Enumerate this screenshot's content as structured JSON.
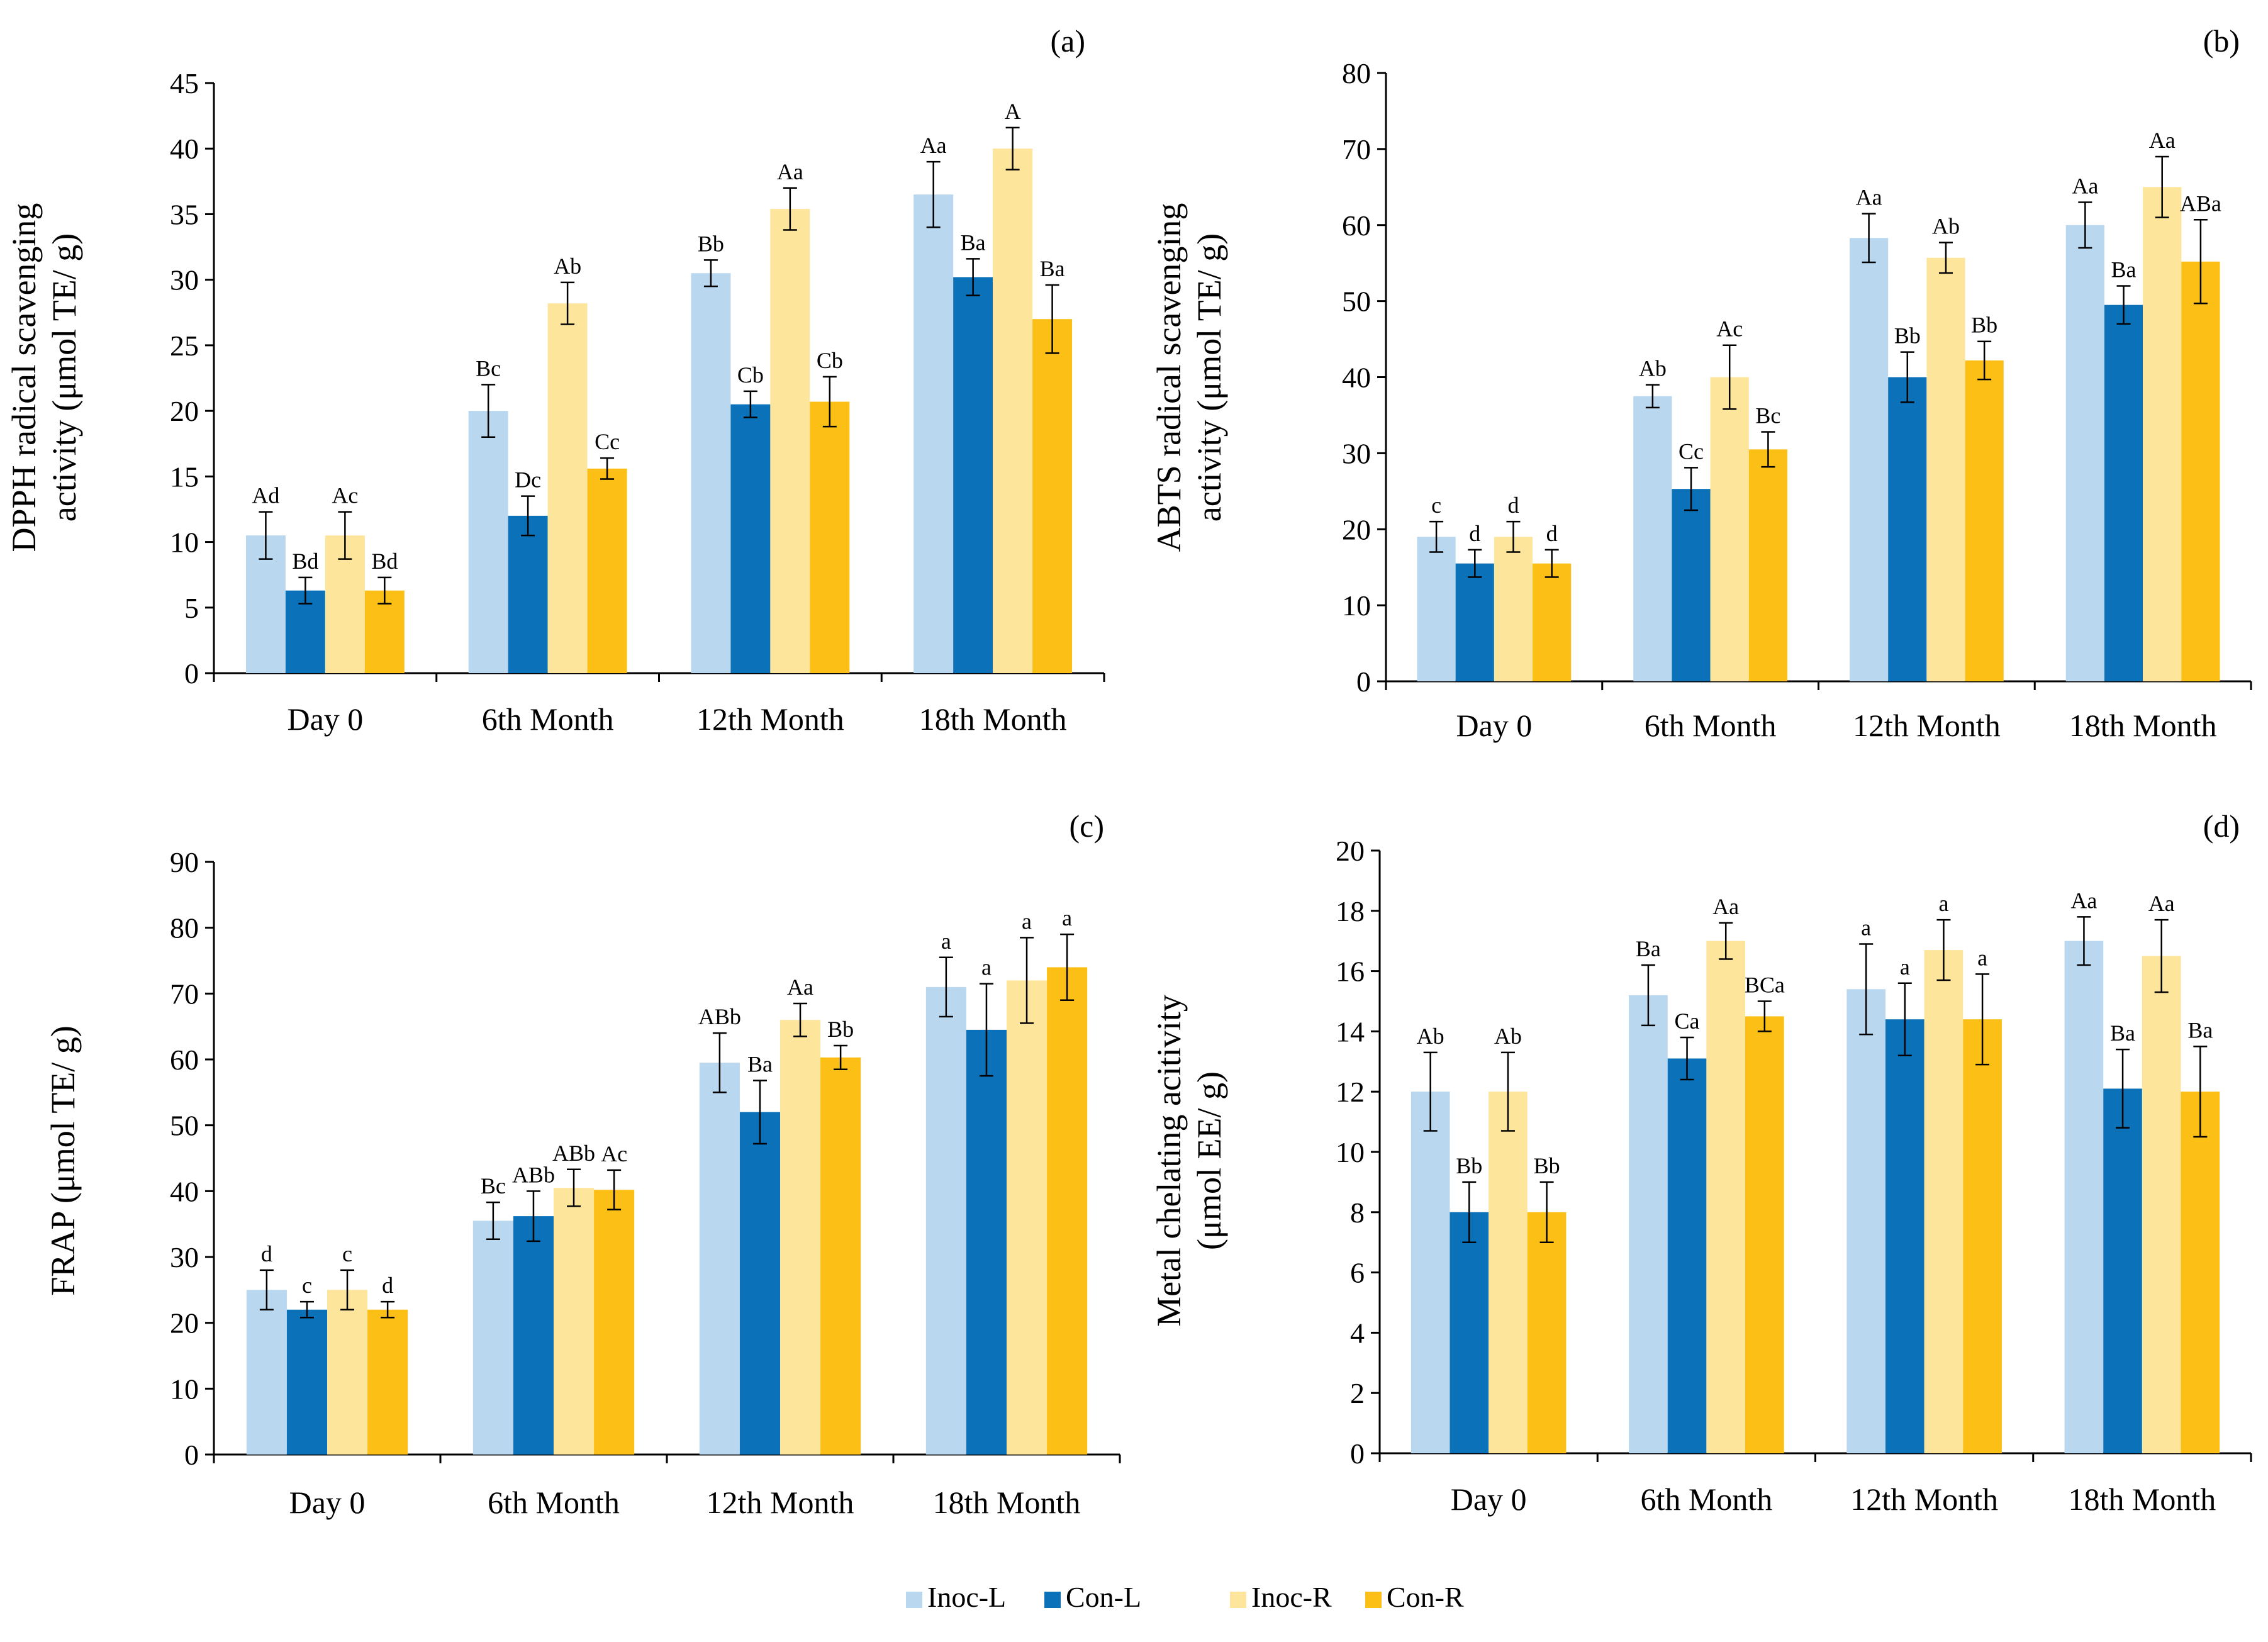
{
  "chart_data": [
    {
      "panel": "(a)",
      "type": "bar",
      "ylabel": "DPPH radical scavenging activity (μmol TE/ g)",
      "ylabel_lines": [
        "DPPH radical scavenging",
        "activity (μmol TE/ g)"
      ],
      "ylim": [
        0,
        45
      ],
      "yticks": [
        0,
        5,
        10,
        15,
        20,
        25,
        30,
        35,
        40,
        45
      ],
      "categories": [
        "Day 0",
        "6th Month",
        "12th Month",
        "18th Month"
      ],
      "series": [
        {
          "name": "Inoc-L",
          "values": [
            10.5,
            20.0,
            30.5,
            36.5
          ],
          "errors": [
            1.8,
            2.0,
            1.0,
            2.5
          ],
          "labels": [
            "Ad",
            "Bc",
            "Bb",
            "Aa"
          ]
        },
        {
          "name": "Con-L",
          "values": [
            6.3,
            12.0,
            20.5,
            30.2
          ],
          "errors": [
            1.0,
            1.5,
            1.0,
            1.4
          ],
          "labels": [
            "Bd",
            "Dc",
            "Cb",
            "Ba"
          ]
        },
        {
          "name": "Inoc-R",
          "values": [
            10.5,
            28.2,
            35.4,
            40.0
          ],
          "errors": [
            1.8,
            1.6,
            1.6,
            1.6
          ],
          "labels": [
            "Ac",
            "Ab",
            "Aa",
            "A"
          ]
        },
        {
          "name": "Con-R",
          "values": [
            6.3,
            15.6,
            20.7,
            27.0
          ],
          "errors": [
            1.0,
            0.8,
            1.9,
            2.6
          ],
          "labels": [
            "Bd",
            "Cc",
            "Cb",
            "Ba"
          ]
        }
      ]
    },
    {
      "panel": "(b)",
      "type": "bar",
      "ylabel": "ABTS radical scavenging activity (μmol TE/ g)",
      "ylabel_lines": [
        "ABTS radical scavenging",
        "activity (μmol TE/ g)"
      ],
      "ylim": [
        0,
        80
      ],
      "yticks": [
        0,
        10,
        20,
        30,
        40,
        50,
        60,
        70,
        80
      ],
      "categories": [
        "Day 0",
        "6th Month",
        "12th Month",
        "18th Month"
      ],
      "series": [
        {
          "name": "Inoc-L",
          "values": [
            19.0,
            37.5,
            58.3,
            60.0
          ],
          "errors": [
            2.0,
            1.5,
            3.2,
            3.0
          ],
          "labels": [
            "c",
            "Ab",
            "Aa",
            "Aa"
          ]
        },
        {
          "name": "Con-L",
          "values": [
            15.5,
            25.3,
            40.0,
            49.5
          ],
          "errors": [
            1.8,
            2.8,
            3.3,
            2.5
          ],
          "labels": [
            "d",
            "Cc",
            "Bb",
            "Ba"
          ]
        },
        {
          "name": "Inoc-R",
          "values": [
            19.0,
            40.0,
            55.7,
            65.0
          ],
          "errors": [
            2.0,
            4.2,
            2.0,
            4.0
          ],
          "labels": [
            "d",
            "Ac",
            "Ab",
            "Aa"
          ]
        },
        {
          "name": "Con-R",
          "values": [
            15.5,
            30.5,
            42.2,
            55.2
          ],
          "errors": [
            1.8,
            2.3,
            2.5,
            5.5
          ],
          "labels": [
            "d",
            "Bc",
            "Bb",
            "ABa"
          ]
        }
      ]
    },
    {
      "panel": "(c)",
      "type": "bar",
      "ylabel": "FRAP (μmol TE/ g)",
      "ylabel_lines": [
        "FRAP (μmol TE/ g)"
      ],
      "ylim": [
        0,
        90
      ],
      "yticks": [
        0,
        10,
        20,
        30,
        40,
        50,
        60,
        70,
        80,
        90
      ],
      "categories": [
        "Day 0",
        "6th Month",
        "12th Month",
        "18th Month"
      ],
      "series": [
        {
          "name": "Inoc-L",
          "values": [
            25.0,
            35.5,
            59.5,
            71.0
          ],
          "errors": [
            3.0,
            2.8,
            4.5,
            4.5
          ],
          "labels": [
            "d",
            "Bc",
            "ABb",
            "a"
          ]
        },
        {
          "name": "Con-L",
          "values": [
            22.0,
            36.2,
            52.0,
            64.5
          ],
          "errors": [
            1.2,
            3.8,
            4.8,
            7.0
          ],
          "labels": [
            "c",
            "ABb",
            "Ba",
            "a"
          ]
        },
        {
          "name": "Inoc-R",
          "values": [
            25.0,
            40.5,
            66.0,
            72.0
          ],
          "errors": [
            3.0,
            2.8,
            2.5,
            6.5
          ],
          "labels": [
            "c",
            "ABb",
            "Aa",
            "a"
          ]
        },
        {
          "name": "Con-R",
          "values": [
            22.0,
            40.2,
            60.3,
            74.0
          ],
          "errors": [
            1.2,
            3.0,
            1.8,
            5.0
          ],
          "labels": [
            "d",
            "Ac",
            "Bb",
            "a"
          ]
        }
      ]
    },
    {
      "panel": "(d)",
      "type": "bar",
      "ylabel": "Metal chelating activity (μmol EE/ g)",
      "ylabel_lines": [
        "Metal chelating acitivity",
        "(μmol EE/ g)"
      ],
      "ylim": [
        0,
        20
      ],
      "yticks": [
        0,
        2,
        4,
        6,
        8,
        10,
        12,
        14,
        16,
        18,
        20
      ],
      "categories": [
        "Day 0",
        "6th Month",
        "12th Month",
        "18th Month"
      ],
      "series": [
        {
          "name": "Inoc-L",
          "values": [
            12.0,
            15.2,
            15.4,
            17.0
          ],
          "errors": [
            1.3,
            1.0,
            1.5,
            0.8
          ],
          "labels": [
            "Ab",
            "Ba",
            "a",
            "Aa"
          ]
        },
        {
          "name": "Con-L",
          "values": [
            8.0,
            13.1,
            14.4,
            12.1
          ],
          "errors": [
            1.0,
            0.7,
            1.2,
            1.3
          ],
          "labels": [
            "Bb",
            "Ca",
            "a",
            "Ba"
          ]
        },
        {
          "name": "Inoc-R",
          "values": [
            12.0,
            17.0,
            16.7,
            16.5
          ],
          "errors": [
            1.3,
            0.6,
            1.0,
            1.2
          ],
          "labels": [
            "Ab",
            "Aa",
            "a",
            "Aa"
          ]
        },
        {
          "name": "Con-R",
          "values": [
            8.0,
            14.5,
            14.4,
            12.0
          ],
          "errors": [
            1.0,
            0.5,
            1.5,
            1.5
          ],
          "labels": [
            "Bb",
            "BCa",
            "a",
            "Ba"
          ]
        }
      ]
    }
  ],
  "legend": [
    {
      "name": "Inoc-L",
      "color": "#b9d7ef"
    },
    {
      "name": "Con-L",
      "color": "#0b71b8"
    },
    {
      "name": "Inoc-R",
      "color": "#fde59c"
    },
    {
      "name": "Con-R",
      "color": "#fbbf16"
    }
  ]
}
